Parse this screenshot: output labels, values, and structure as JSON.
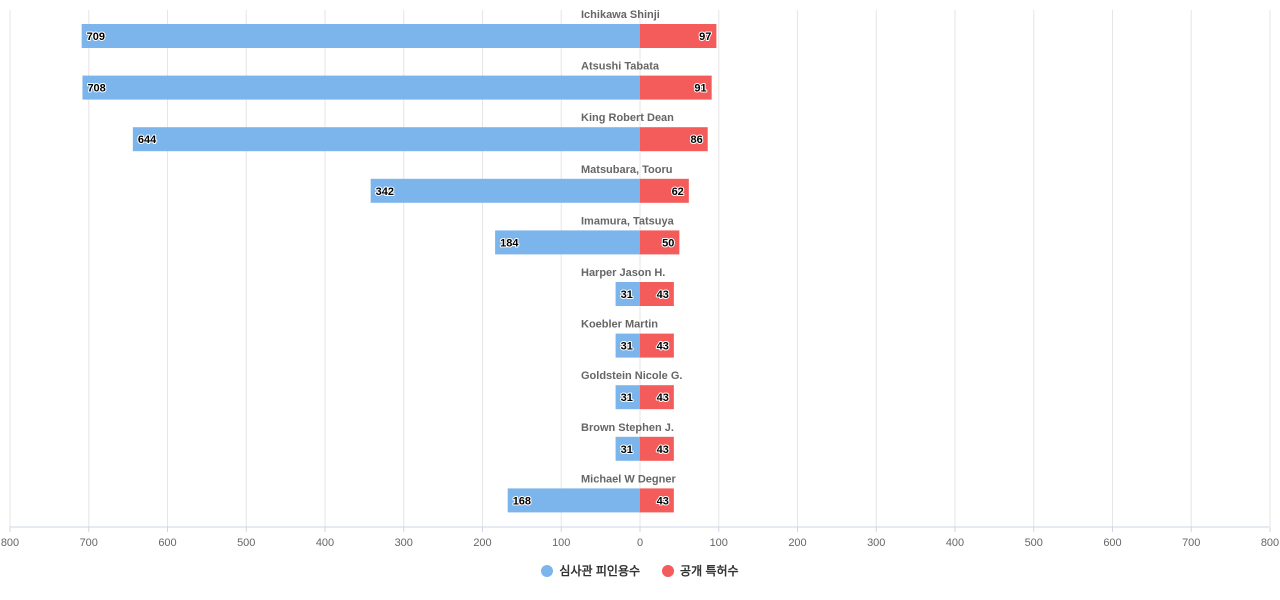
{
  "chart_data": {
    "type": "bar",
    "orientation": "horizontal-butterfly",
    "categories": [
      "Ichikawa Shinji",
      "Atsushi Tabata",
      "King Robert Dean",
      "Matsubara, Tooru",
      "Imamura, Tatsuya",
      "Harper Jason H.",
      "Koebler Martin",
      "Goldstein Nicole G.",
      "Brown Stephen J.",
      "Michael W Degner"
    ],
    "series": [
      {
        "name": "심사관 피인용수",
        "color": "#7cb5ec",
        "side": "left",
        "values": [
          709,
          708,
          644,
          342,
          184,
          31,
          31,
          31,
          31,
          168
        ]
      },
      {
        "name": "공개 특허수",
        "color": "#f45b5b",
        "side": "right",
        "values": [
          97,
          91,
          86,
          62,
          50,
          43,
          43,
          43,
          43,
          43
        ]
      }
    ],
    "xlim": [
      -800,
      800
    ],
    "ticks": [
      800,
      700,
      600,
      500,
      400,
      300,
      200,
      100,
      0,
      100,
      200,
      300,
      400,
      500,
      600,
      700,
      800
    ],
    "title": "",
    "legend_position": "bottom-center",
    "grid": true
  }
}
